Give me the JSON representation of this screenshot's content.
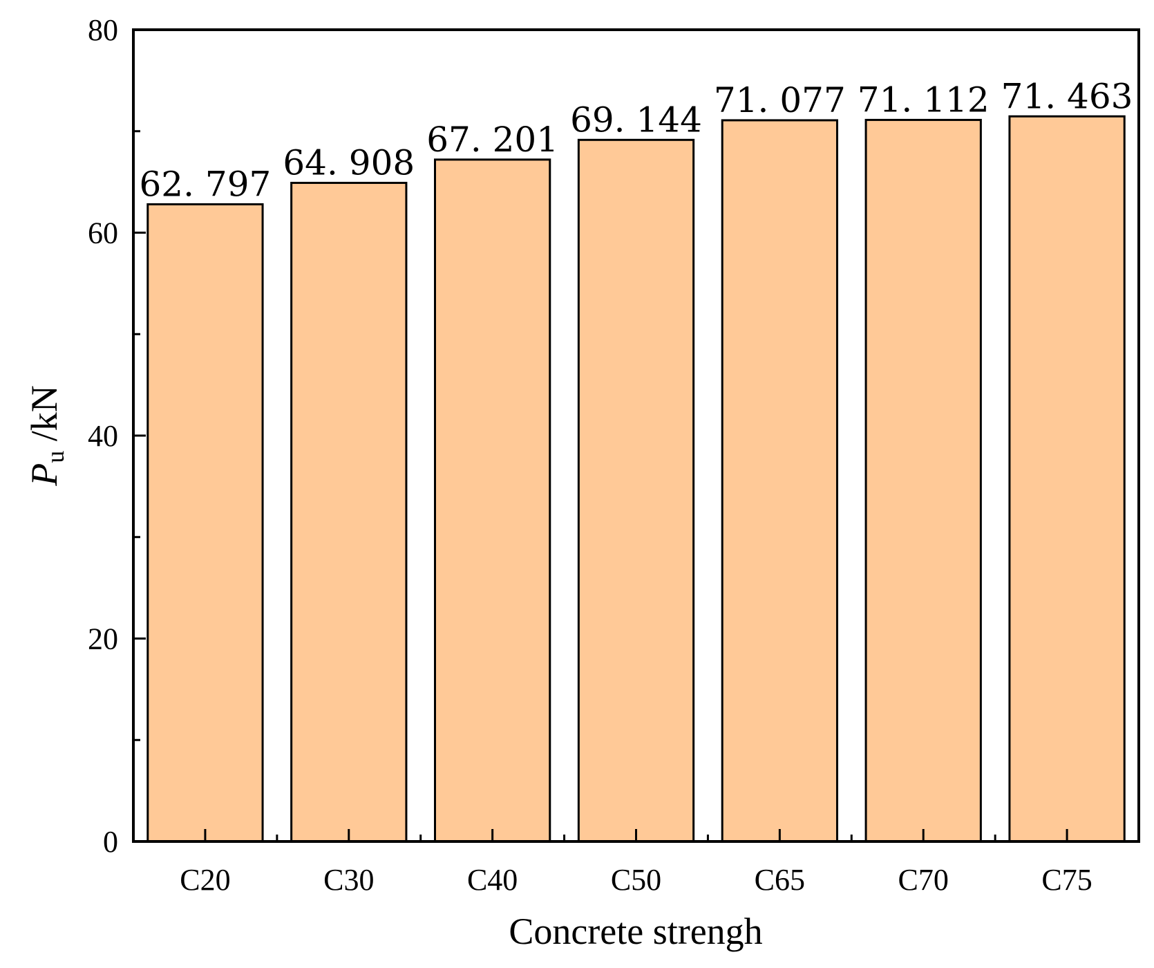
{
  "chart_data": {
    "type": "bar",
    "title": "",
    "categories": [
      "C20",
      "C30",
      "C40",
      "C50",
      "C65",
      "C70",
      "C75"
    ],
    "values": [
      62.797,
      64.908,
      67.201,
      69.144,
      71.077,
      71.112,
      71.463
    ],
    "value_labels": [
      "62. 797",
      "64. 908",
      "67. 201",
      "69. 144",
      "71. 077",
      "71. 112",
      "71. 463"
    ],
    "xlabel": "Concrete strengh",
    "ylabel": {
      "symbol": "P",
      "subscript": "u",
      "unit": " /kN"
    },
    "ylim": [
      0,
      80
    ],
    "yticks": [
      0,
      20,
      40,
      60,
      80
    ],
    "grid": false,
    "bar_color": "#FFC997",
    "edge_color": "#000000"
  }
}
